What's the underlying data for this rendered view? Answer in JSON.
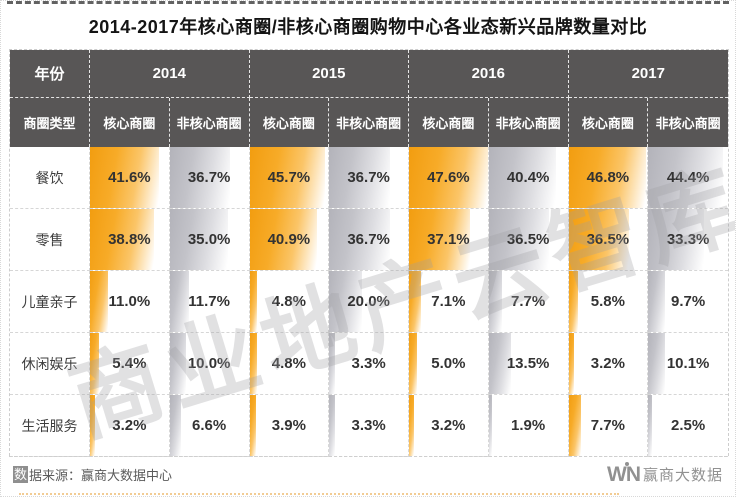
{
  "title": "2014-2017年核心商圈/非核心商圈购物中心各业态新兴品牌数量对比",
  "colors": {
    "header_bg": "#585656",
    "core_bar_orange": "#F6A51D",
    "noncore_bar_gray": "#BDBDC4",
    "accent_orange": "#E8A33D"
  },
  "table": {
    "year_header_label": "年份",
    "type_header_label": "商圈类型",
    "years": [
      "2014",
      "2015",
      "2016",
      "2017"
    ],
    "core_label": "核心商圈",
    "noncore_label": "非核心商圈",
    "rows": [
      {
        "label": "餐饮",
        "values": [
          "41.6%",
          "36.7%",
          "45.7%",
          "36.7%",
          "47.6%",
          "40.4%",
          "46.8%",
          "44.4%"
        ]
      },
      {
        "label": "零售",
        "values": [
          "38.8%",
          "35.0%",
          "40.9%",
          "36.7%",
          "37.1%",
          "36.5%",
          "36.5%",
          "33.3%"
        ]
      },
      {
        "label": "儿童亲子",
        "values": [
          "11.0%",
          "11.7%",
          "4.8%",
          "20.0%",
          "7.1%",
          "7.7%",
          "5.8%",
          "9.7%"
        ]
      },
      {
        "label": "休闲娱乐",
        "values": [
          "5.4%",
          "10.0%",
          "4.8%",
          "3.3%",
          "5.0%",
          "13.5%",
          "3.2%",
          "10.1%"
        ]
      },
      {
        "label": "生活服务",
        "values": [
          "3.2%",
          "6.6%",
          "3.9%",
          "3.3%",
          "3.2%",
          "1.9%",
          "7.7%",
          "2.5%"
        ]
      }
    ]
  },
  "chart_data": {
    "type": "table",
    "title": "2014-2017年核心商圈/非核心商圈购物中心各业态新兴品牌数量对比",
    "unit": "%",
    "row_categories": [
      "餐饮",
      "零售",
      "儿童亲子",
      "休闲娱乐",
      "生活服务"
    ],
    "column_groups": [
      "2014",
      "2015",
      "2016",
      "2017"
    ],
    "sub_columns": [
      "核心商圈",
      "非核心商圈"
    ],
    "series": [
      {
        "year": "2014",
        "core": [
          41.6,
          38.8,
          11.0,
          5.4,
          3.2
        ],
        "noncore": [
          36.7,
          35.0,
          11.7,
          10.0,
          6.6
        ]
      },
      {
        "year": "2015",
        "core": [
          45.7,
          40.9,
          4.8,
          4.8,
          3.9
        ],
        "noncore": [
          36.7,
          36.7,
          20.0,
          3.3,
          3.3
        ]
      },
      {
        "year": "2016",
        "core": [
          47.6,
          37.1,
          7.1,
          5.0,
          3.2
        ],
        "noncore": [
          40.4,
          36.5,
          7.7,
          13.5,
          1.9
        ]
      },
      {
        "year": "2017",
        "core": [
          46.8,
          36.5,
          5.8,
          3.2,
          7.7
        ],
        "noncore": [
          44.4,
          33.3,
          9.7,
          10.1,
          2.5
        ]
      }
    ],
    "bar_scale_max": 47.6,
    "bar_style": "gradient data bars, orange = 核心商圈, gray = 非核心商圈"
  },
  "watermark": {
    "text": "商业地产云智库"
  },
  "footer": {
    "source_badge_char": "数",
    "source_text": "据来源：赢商大数据中心",
    "logo_mark_left": "W",
    "logo_mark_right": "N",
    "logo_text": "赢商大数据"
  }
}
